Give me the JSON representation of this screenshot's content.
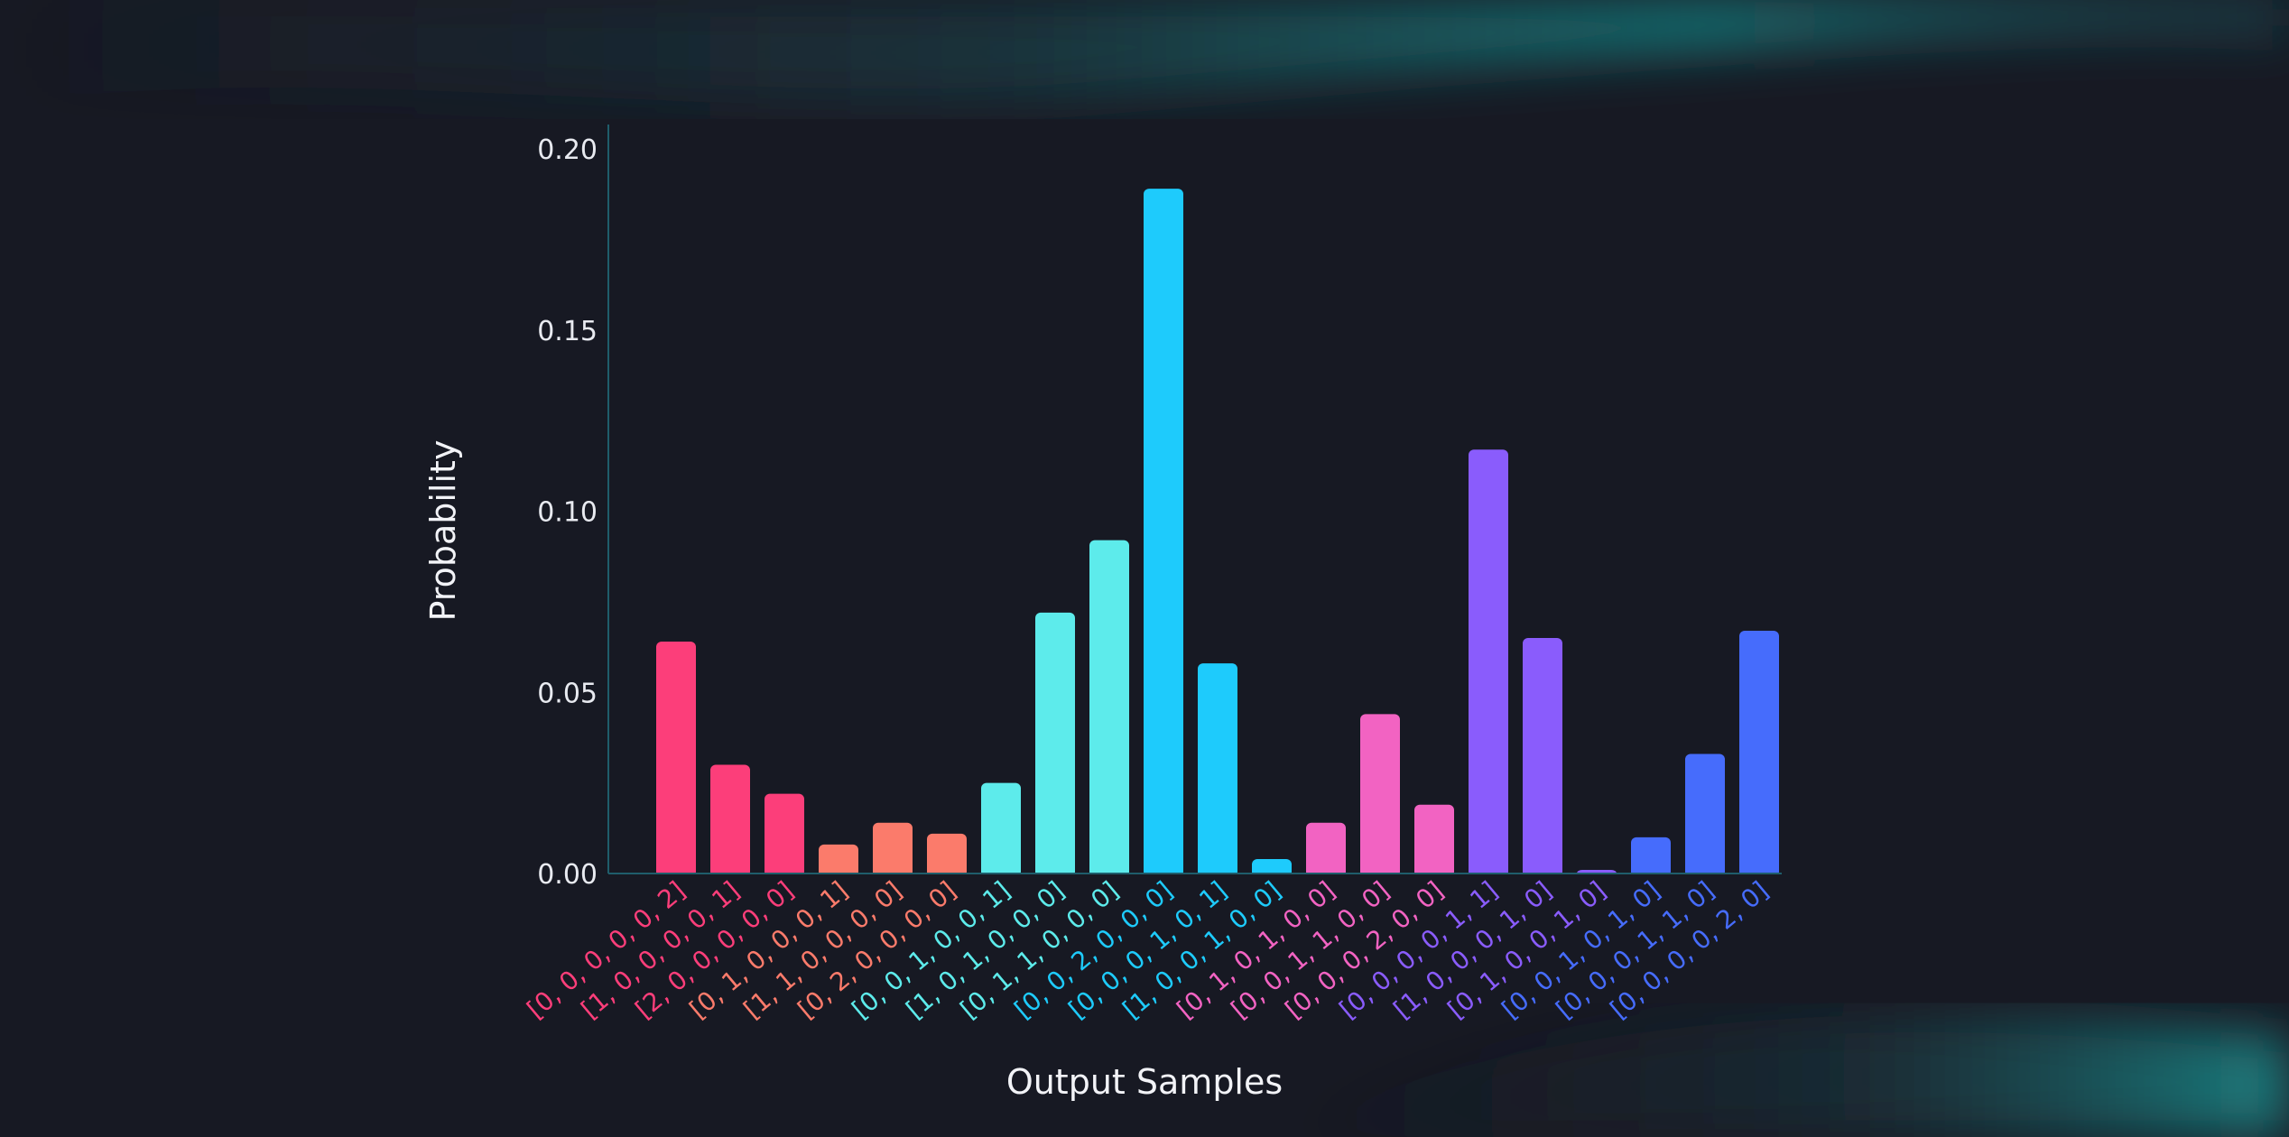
{
  "chart_data": {
    "type": "bar",
    "xlabel": "Output Samples",
    "ylabel": "Probability",
    "ylim": [
      0,
      0.2
    ],
    "yticks": [
      "0.00",
      "0.05",
      "0.10",
      "0.15",
      "0.20"
    ],
    "grid": false,
    "categories": [
      "[0, 0, 0, 0, 0, 2]",
      "[1, 0, 0, 0, 0, 1]",
      "[2, 0, 0, 0, 0, 0]",
      "[0, 1, 0, 0, 0, 1]",
      "[1, 1, 0, 0, 0, 0]",
      "[0, 2, 0, 0, 0, 0]",
      "[0, 0, 1, 0, 0, 1]",
      "[1, 0, 1, 0, 0, 0]",
      "[0, 1, 1, 0, 0, 0]",
      "[0, 0, 2, 0, 0, 0]",
      "[0, 0, 0, 1, 0, 1]",
      "[1, 0, 0, 1, 0, 0]",
      "[0, 1, 0, 1, 0, 0]",
      "[0, 0, 1, 1, 0, 0]",
      "[0, 0, 0, 2, 0, 0]",
      "[0, 0, 0, 0, 1, 1]",
      "[1, 0, 0, 0, 1, 0]",
      "[0, 1, 0, 0, 1, 0]",
      "[0, 0, 1, 0, 1, 0]",
      "[0, 0, 0, 1, 1, 0]",
      "[0, 0, 0, 0, 2, 0]"
    ],
    "values": [
      0.064,
      0.03,
      0.022,
      0.008,
      0.014,
      0.011,
      0.025,
      0.072,
      0.092,
      0.189,
      0.058,
      0.004,
      0.014,
      0.044,
      0.019,
      0.117,
      0.065,
      0.001,
      0.01,
      0.033,
      0.067
    ],
    "colors": [
      "#fc3e7a",
      "#fc3e7a",
      "#fc3e7a",
      "#fb7b6b",
      "#fb7b6b",
      "#fb7b6b",
      "#5debeb",
      "#5debeb",
      "#5debeb",
      "#1ecbfc",
      "#1ecbfc",
      "#1ecbfc",
      "#f263c2",
      "#f263c2",
      "#f263c2",
      "#8a5cfc",
      "#8a5cfc",
      "#8a5cfc",
      "#466cfc",
      "#466cfc",
      "#466cfc"
    ],
    "axis_color": "#1f5d6b"
  }
}
